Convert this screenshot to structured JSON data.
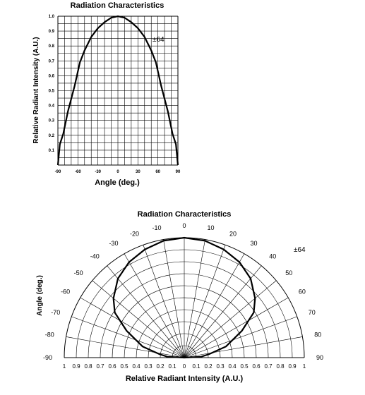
{
  "chart_data": [
    {
      "type": "line",
      "title": "Radiation Characteristics",
      "xlabel": "Angle (deg.)",
      "ylabel": "Relative Radiant Intensity (A.U.)",
      "annotation": "±64",
      "xlim": [
        -90,
        90
      ],
      "ylim": [
        0,
        1.0
      ],
      "grid": true,
      "x_ticks": [
        "-90",
        "-60",
        "-30",
        "0",
        "30",
        "60",
        "90"
      ],
      "x_tick_values": [
        -90,
        -60,
        -30,
        0,
        30,
        60,
        90
      ],
      "y_ticks": [
        "0.1",
        "0.2",
        "0.3",
        "0.4",
        "0.5",
        "0.6",
        "0.7",
        "0.8",
        "0.9",
        "1.0"
      ],
      "y_tick_values": [
        0.1,
        0.2,
        0.3,
        0.4,
        0.5,
        0.6,
        0.7,
        0.8,
        0.9,
        1.0
      ],
      "series": [
        {
          "x": [
            -90,
            -87,
            -82,
            -75,
            -65,
            -57,
            -50,
            -40,
            -30,
            -20,
            -10,
            0,
            10,
            20,
            30,
            40,
            50,
            57,
            65,
            75,
            82,
            87,
            90
          ],
          "y": [
            0.0,
            0.14,
            0.21,
            0.36,
            0.53,
            0.69,
            0.77,
            0.86,
            0.92,
            0.96,
            0.99,
            1.0,
            0.99,
            0.96,
            0.92,
            0.86,
            0.77,
            0.69,
            0.53,
            0.36,
            0.21,
            0.14,
            0.0
          ]
        }
      ]
    },
    {
      "type": "polar",
      "title": "Radiation Characteristics",
      "xlabel": "Relative Radiant Intensity (A.U.)",
      "ylabel": "Angle (deg.)",
      "annotation": "±64",
      "rlim": [
        0,
        1
      ],
      "grid": true,
      "angle_ticks_left": [
        "-10",
        "-20",
        "-30",
        "-40",
        "-50",
        "-60",
        "-70",
        "-80",
        "-90"
      ],
      "angle_ticks_right": [
        "0",
        "10",
        "20",
        "30",
        "40",
        "50",
        "60",
        "70",
        "80",
        "90"
      ],
      "radial_ticks": [
        "1",
        "0.9",
        "0.8",
        "0.7",
        "0.6",
        "0.5",
        "0.4",
        "0.3",
        "0.2",
        "0.1",
        "0",
        "0.1",
        "0.2",
        "0.3",
        "0.4",
        "0.5",
        "0.6",
        "0.7",
        "0.8",
        "0.9",
        "1"
      ],
      "series": [
        {
          "angle": [
            -90,
            -87,
            -82,
            -75,
            -65,
            -57,
            -50,
            -40,
            -30,
            -20,
            -10,
            0,
            10,
            20,
            30,
            40,
            50,
            57,
            65,
            75,
            82,
            87,
            90
          ],
          "r": [
            0.0,
            0.14,
            0.21,
            0.36,
            0.53,
            0.69,
            0.77,
            0.86,
            0.92,
            0.96,
            0.99,
            1.0,
            0.99,
            0.96,
            0.92,
            0.86,
            0.77,
            0.69,
            0.53,
            0.36,
            0.21,
            0.14,
            0.0
          ]
        }
      ]
    }
  ]
}
